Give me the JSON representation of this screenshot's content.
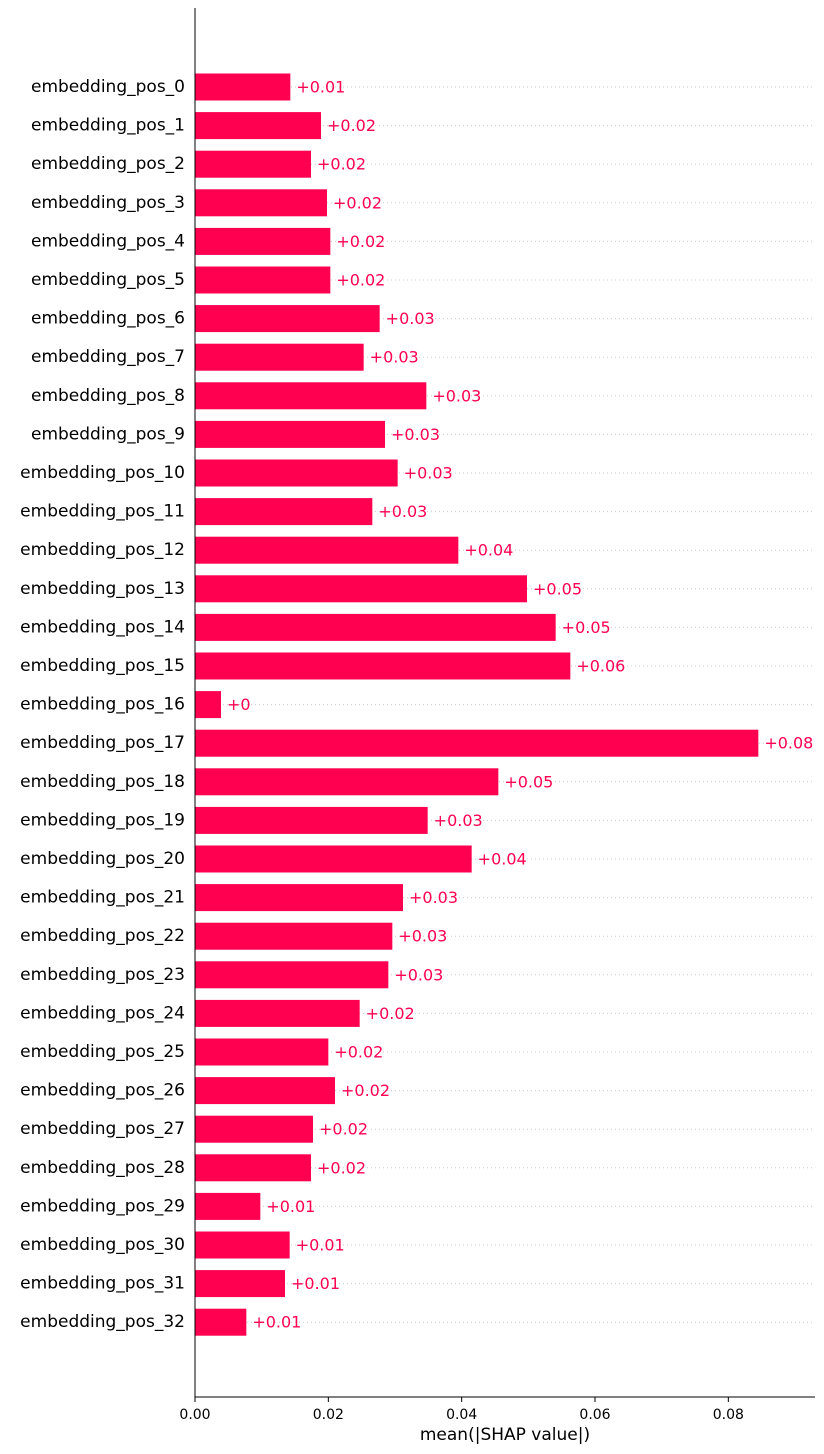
{
  "chart_data": {
    "type": "bar",
    "orientation": "horizontal",
    "title": "",
    "xlabel": "mean(|SHAP value|)",
    "ylabel": "",
    "xlim": [
      0,
      0.093
    ],
    "xticks": [
      "0.00",
      "0.02",
      "0.04",
      "0.06",
      "0.08"
    ],
    "grid": "dotted horizontal guide lines per bar",
    "bar_color": "#ff0051",
    "categories": [
      "embedding_pos_0",
      "embedding_pos_1",
      "embedding_pos_2",
      "embedding_pos_3",
      "embedding_pos_4",
      "embedding_pos_5",
      "embedding_pos_6",
      "embedding_pos_7",
      "embedding_pos_8",
      "embedding_pos_9",
      "embedding_pos_10",
      "embedding_pos_11",
      "embedding_pos_12",
      "embedding_pos_13",
      "embedding_pos_14",
      "embedding_pos_15",
      "embedding_pos_16",
      "embedding_pos_17",
      "embedding_pos_18",
      "embedding_pos_19",
      "embedding_pos_20",
      "embedding_pos_21",
      "embedding_pos_22",
      "embedding_pos_23",
      "embedding_pos_24",
      "embedding_pos_25",
      "embedding_pos_26",
      "embedding_pos_27",
      "embedding_pos_28",
      "embedding_pos_29",
      "embedding_pos_30",
      "embedding_pos_31",
      "embedding_pos_32"
    ],
    "values": [
      0.0143,
      0.0189,
      0.0174,
      0.0198,
      0.0203,
      0.0203,
      0.0277,
      0.0253,
      0.0347,
      0.0285,
      0.0304,
      0.0266,
      0.0395,
      0.0498,
      0.0541,
      0.0563,
      0.0039,
      0.0845,
      0.0455,
      0.0349,
      0.0415,
      0.0312,
      0.0296,
      0.029,
      0.0247,
      0.02,
      0.021,
      0.0177,
      0.0174,
      0.0098,
      0.0142,
      0.0135,
      0.0077
    ],
    "value_labels": [
      "+0.01",
      "+0.02",
      "+0.02",
      "+0.02",
      "+0.02",
      "+0.02",
      "+0.03",
      "+0.03",
      "+0.03",
      "+0.03",
      "+0.03",
      "+0.03",
      "+0.04",
      "+0.05",
      "+0.05",
      "+0.06",
      "+0",
      "+0.08",
      "+0.05",
      "+0.03",
      "+0.04",
      "+0.03",
      "+0.03",
      "+0.03",
      "+0.02",
      "+0.02",
      "+0.02",
      "+0.02",
      "+0.02",
      "+0.01",
      "+0.01",
      "+0.01",
      "+0.01"
    ]
  }
}
